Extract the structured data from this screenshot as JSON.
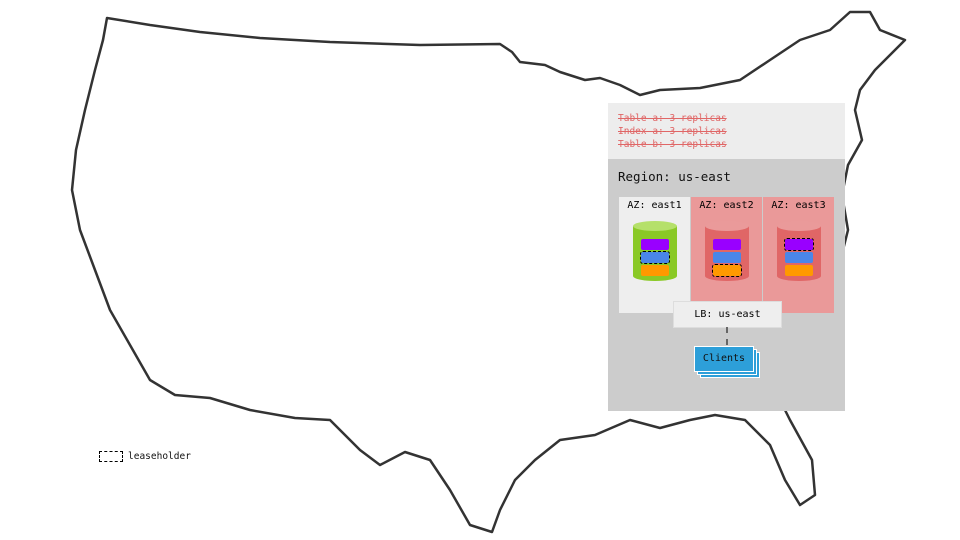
{
  "notes": [
    "Table a: 3 replicas",
    "Index a: 3 replicas",
    "Table b: 3 replicas"
  ],
  "region": {
    "title": "Region: us-east",
    "azs": [
      {
        "label": "AZ: east1",
        "bg": "#eeeeee",
        "cyl": "#8ac926",
        "top": "#b5e06a",
        "leaseholder_index": 1
      },
      {
        "label": "AZ: east2",
        "bg": "#ea9999",
        "cyl": "#e06666",
        "top": "#ea9a9a",
        "leaseholder_index": 2
      },
      {
        "label": "AZ: east3",
        "bg": "#ea9999",
        "cyl": "#e06666",
        "top": "#ea9a9a",
        "leaseholder_index": 0
      }
    ],
    "range_colors": [
      "#9900ff",
      "#4a86e8",
      "#ff9900"
    ],
    "lb": "LB: us-east",
    "clients": "Clients"
  },
  "legend": {
    "label": "leaseholder"
  }
}
